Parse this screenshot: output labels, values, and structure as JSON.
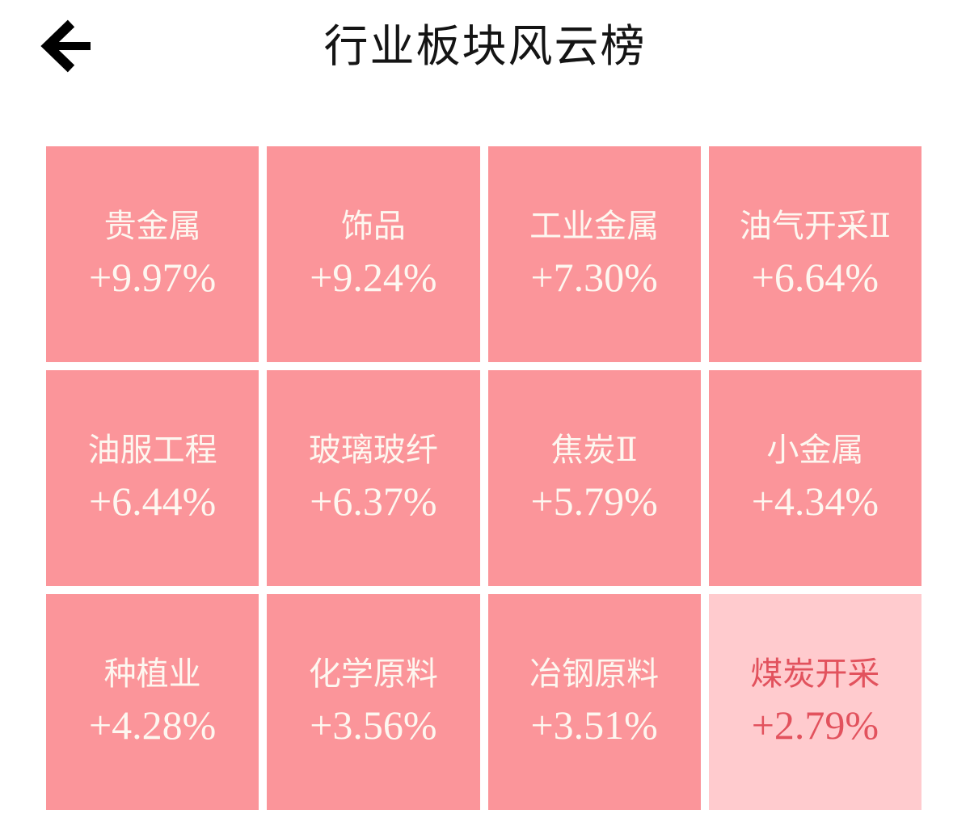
{
  "header": {
    "title": "行业板块风云榜",
    "back_icon": "arrow-left-icon"
  },
  "colors": {
    "tile_bg": "#FB959A",
    "tile_bg_light": "#FFCBCE",
    "tile_text": "#FDF7F0",
    "tile_text_red": "#E2525D",
    "title_color": "#141414",
    "page_bg": "#FFFFFF",
    "arrow_color": "#000000"
  },
  "tiles": [
    {
      "name": "贵金属",
      "change": "+9.97%",
      "variant": "solid"
    },
    {
      "name": "饰品",
      "change": "+9.24%",
      "variant": "solid"
    },
    {
      "name": "工业金属",
      "change": "+7.30%",
      "variant": "solid"
    },
    {
      "name": "油气开采Ⅱ",
      "change": "+6.64%",
      "variant": "solid"
    },
    {
      "name": "油服工程",
      "change": "+6.44%",
      "variant": "solid"
    },
    {
      "name": "玻璃玻纤",
      "change": "+6.37%",
      "variant": "solid"
    },
    {
      "name": "焦炭Ⅱ",
      "change": "+5.79%",
      "variant": "solid"
    },
    {
      "name": "小金属",
      "change": "+4.34%",
      "variant": "solid"
    },
    {
      "name": "种植业",
      "change": "+4.28%",
      "variant": "solid"
    },
    {
      "name": "化学原料",
      "change": "+3.56%",
      "variant": "solid"
    },
    {
      "name": "冶钢原料",
      "change": "+3.51%",
      "variant": "solid"
    },
    {
      "name": "煤炭开采",
      "change": "+2.79%",
      "variant": "light"
    }
  ]
}
